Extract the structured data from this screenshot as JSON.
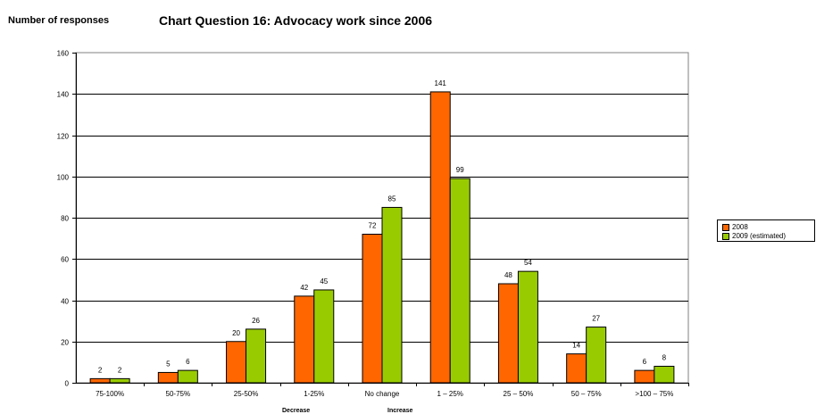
{
  "header": {
    "ylabel": "Number of responses",
    "title": "Chart Question 16:   Advocacy work since 2006"
  },
  "colors": {
    "series_2008": "#ff6600",
    "series_2009": "#99cc00"
  },
  "chart_data": {
    "type": "bar",
    "title": "Chart Question 16:   Advocacy work since 2006",
    "ylabel": "Number of responses",
    "ylim": [
      0,
      160
    ],
    "yticks": [
      0,
      20,
      40,
      60,
      80,
      100,
      120,
      140,
      160
    ],
    "grid": true,
    "legend_position": "right",
    "categories": [
      "75-100%",
      "50-75%",
      "25-50%",
      "1-25%",
      "No change",
      "1 – 25%",
      "25 – 50%",
      "50 – 75%",
      ">100 – 75%"
    ],
    "category_groups": [
      {
        "label": "Decrease",
        "categories": [
          "75-100%",
          "50-75%",
          "25-50%",
          "1-25%"
        ]
      },
      {
        "label": "Increase",
        "categories": [
          "1 – 25%",
          "25 – 50%",
          "50 – 75%",
          ">100 – 75%"
        ]
      }
    ],
    "series": [
      {
        "name": "2008",
        "values": [
          2,
          5,
          20,
          42,
          72,
          141,
          48,
          14,
          6
        ]
      },
      {
        "name": "2009 (estimated)",
        "values": [
          2,
          6,
          26,
          45,
          85,
          99,
          54,
          27,
          8
        ]
      }
    ]
  }
}
